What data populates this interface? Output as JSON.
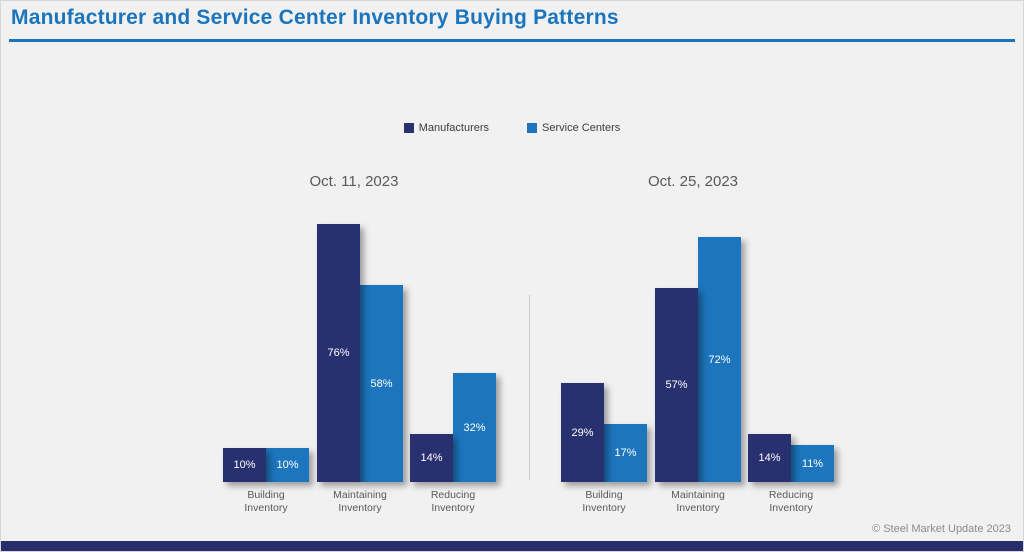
{
  "page": {
    "title": "Manufacturer and Service Center Inventory Buying Patterns",
    "footer": "© Steel Market Update 2023"
  },
  "colors": {
    "manufacturers": "#29306f",
    "service_centers": "#1d76bd",
    "accent_blue": "#1b75bc"
  },
  "legend": [
    {
      "label": "Manufacturers",
      "color": "#29306f"
    },
    {
      "label": "Service Centers",
      "color": "#1d76bd"
    }
  ],
  "chart_data": [
    {
      "type": "bar",
      "title": "Oct. 11, 2023",
      "categories": [
        "Building\nInventory",
        "Maintaining\nInventory",
        "Reducing\nInventory"
      ],
      "series": [
        {
          "name": "Manufacturers",
          "values": [
            10,
            76,
            14
          ],
          "labels": [
            "10%",
            "76%",
            "14%"
          ]
        },
        {
          "name": "Service Centers",
          "values": [
            10,
            58,
            32
          ],
          "labels": [
            "10%",
            "58%",
            "32%"
          ]
        }
      ],
      "ylabel": "",
      "xlabel": "",
      "ylim": [
        0,
        80
      ],
      "grid": false,
      "legend_position": "top-center"
    },
    {
      "type": "bar",
      "title": "Oct. 25, 2023",
      "categories": [
        "Building\nInventory",
        "Maintaining\nInventory",
        "Reducing\nInventory"
      ],
      "series": [
        {
          "name": "Manufacturers",
          "values": [
            29,
            57,
            14
          ],
          "labels": [
            "29%",
            "57%",
            "14%"
          ]
        },
        {
          "name": "Service Centers",
          "values": [
            17,
            72,
            11
          ],
          "labels": [
            "17%",
            "72%",
            "11%"
          ]
        }
      ],
      "ylabel": "",
      "xlabel": "",
      "ylim": [
        0,
        80
      ],
      "grid": false,
      "legend_position": "top-center"
    }
  ]
}
